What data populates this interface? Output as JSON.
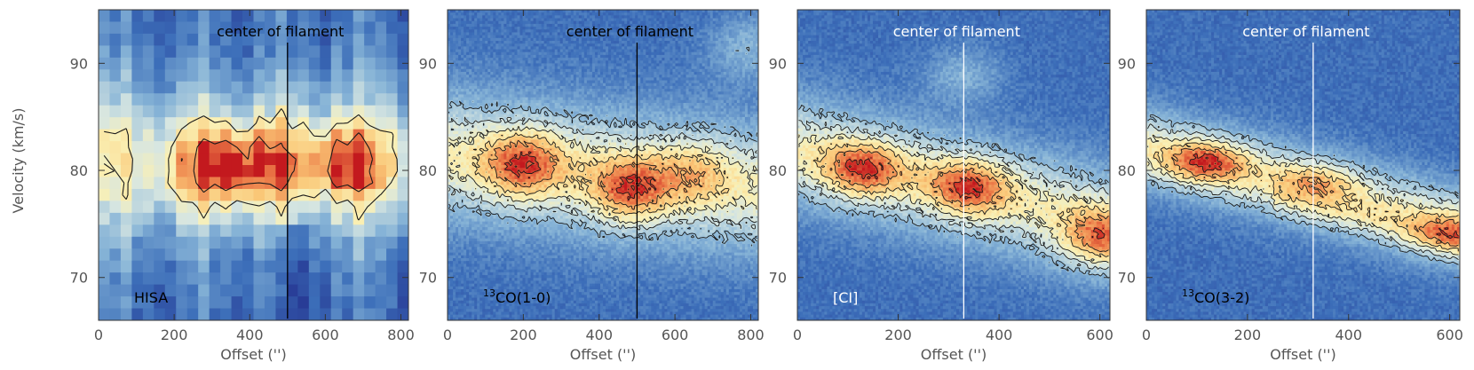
{
  "figure": {
    "shared_ylabel": "Velocity (km/s)"
  },
  "chart_data": [
    {
      "type": "heatmap",
      "panel_label": "HISA",
      "annotation": "center of filament",
      "xlabel": "Offset ('')",
      "xlim": [
        0,
        820
      ],
      "ylim": [
        66,
        95
      ],
      "xticks": [
        0,
        200,
        400,
        600,
        800
      ],
      "yticks": [
        70,
        80,
        90
      ],
      "filament_center_offset": 500,
      "line_color": "#000000",
      "annotation_color": "#000000",
      "label_color": "#000000",
      "smoothness": "blocky",
      "emission_peaks": [
        {
          "offset": 310,
          "velocity": 80.3,
          "intensity": 1.0
        },
        {
          "offset": 660,
          "velocity": 80.5,
          "intensity": 1.0
        },
        {
          "offset": 450,
          "velocity": 80.5,
          "intensity": 0.7
        }
      ]
    },
    {
      "type": "heatmap",
      "panel_label": "13CO(1-0)",
      "panel_label_sup": "13",
      "panel_label_main": "CO(1-0)",
      "annotation": "center of filament",
      "xlabel": "Offset ('')",
      "xlim": [
        0,
        820
      ],
      "ylim": [
        66,
        95
      ],
      "xticks": [
        0,
        200,
        400,
        600,
        800
      ],
      "yticks": [
        70,
        80,
        90
      ],
      "filament_center_offset": 500,
      "line_color": "#000000",
      "annotation_color": "#000000",
      "label_color": "#000000",
      "smoothness": "fine",
      "emission_peaks": [
        {
          "offset": 200,
          "velocity": 80.5,
          "intensity": 1.0
        },
        {
          "offset": 480,
          "velocity": 78.0,
          "intensity": 1.0
        },
        {
          "offset": 650,
          "velocity": 80.0,
          "intensity": 0.5
        },
        {
          "offset": 790,
          "velocity": 91.5,
          "intensity": 0.55
        }
      ]
    },
    {
      "type": "heatmap",
      "panel_label": "[CI]",
      "annotation": "center of filament",
      "xlabel": "Offset ('')",
      "xlim": [
        0,
        620
      ],
      "ylim": [
        66,
        95
      ],
      "xticks": [
        0,
        200,
        400,
        600
      ],
      "yticks": [
        70,
        80,
        90
      ],
      "filament_center_offset": 330,
      "line_color": "#ffffff",
      "annotation_color": "#ffffff",
      "label_color": "#ffffff",
      "smoothness": "fine",
      "emission_peaks": [
        {
          "offset": 130,
          "velocity": 80.0,
          "intensity": 1.0
        },
        {
          "offset": 340,
          "velocity": 78.5,
          "intensity": 1.0
        },
        {
          "offset": 600,
          "velocity": 73.5,
          "intensity": 1.0
        },
        {
          "offset": 330,
          "velocity": 89.0,
          "intensity": 0.5
        }
      ]
    },
    {
      "type": "heatmap",
      "panel_label": "13CO(3-2)",
      "panel_label_sup": "13",
      "panel_label_main": "CO(3-2)",
      "annotation": "center of filament",
      "xlabel": "Offset ('')",
      "xlim": [
        0,
        620
      ],
      "ylim": [
        66,
        95
      ],
      "xticks": [
        0,
        200,
        400,
        600
      ],
      "yticks": [
        70,
        80,
        90
      ],
      "filament_center_offset": 330,
      "line_color": "#ffffff",
      "annotation_color": "#ffffff",
      "label_color": "#000000",
      "smoothness": "fine",
      "emission_peaks": [
        {
          "offset": 120,
          "velocity": 80.8,
          "intensity": 1.0
        },
        {
          "offset": 340,
          "velocity": 79.0,
          "intensity": 0.6
        },
        {
          "offset": 600,
          "velocity": 74.0,
          "intensity": 0.7
        }
      ]
    }
  ]
}
